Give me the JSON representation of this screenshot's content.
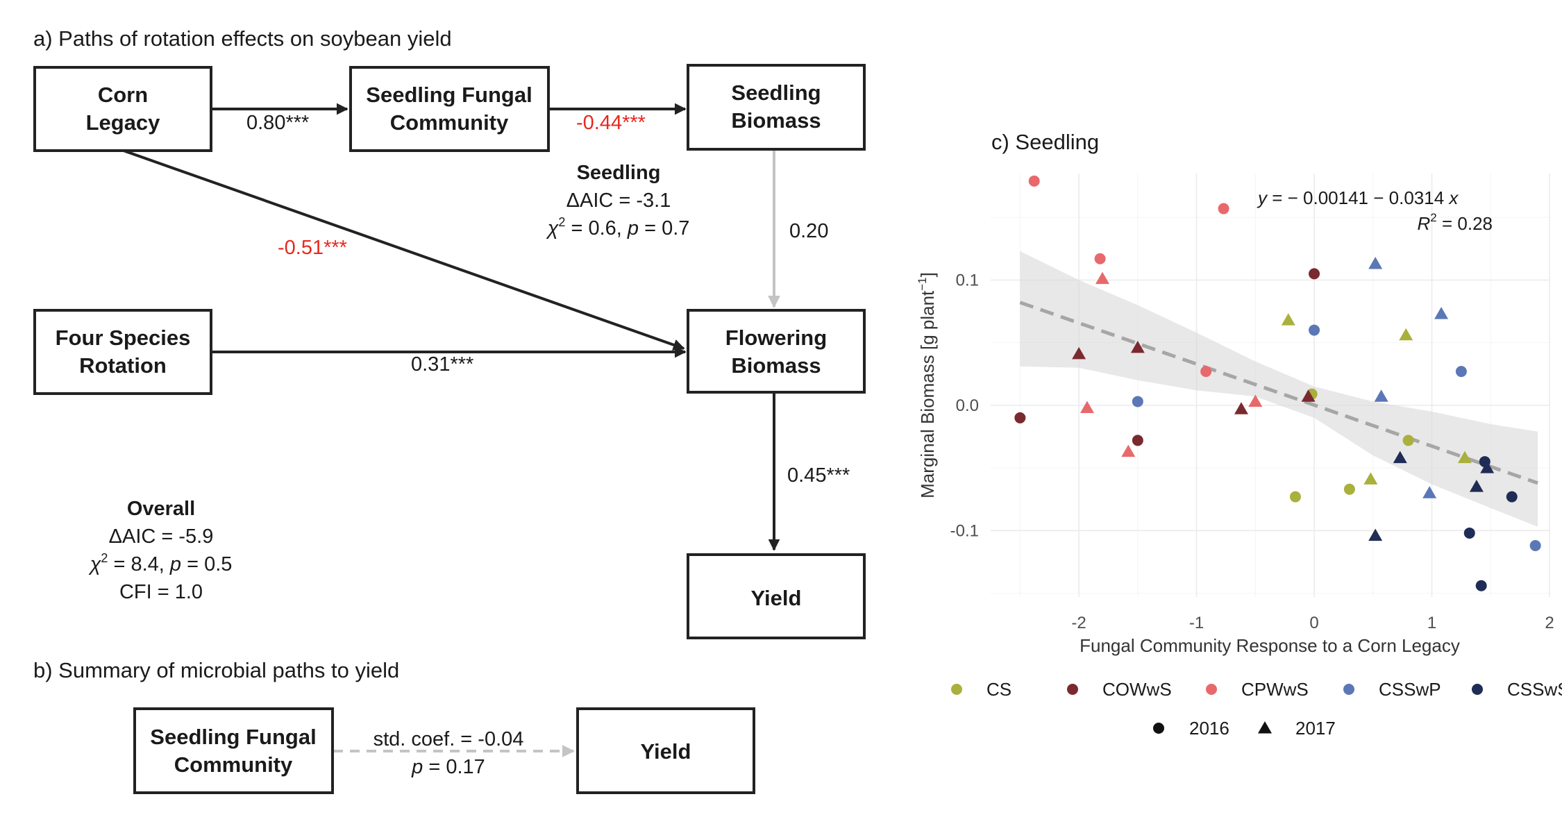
{
  "panel_a": {
    "title": "a) Paths of rotation effects on soybean yield",
    "boxes": {
      "corn_legacy": [
        "Corn",
        "Legacy"
      ],
      "seedling_fungal": [
        "Seedling Fungal",
        "Community"
      ],
      "seedling_biomass": [
        "Seedling",
        "Biomass"
      ],
      "four_species": [
        "Four Species",
        "Rotation"
      ],
      "flowering_biomass": [
        "Flowering",
        "Biomass"
      ],
      "yield": "Yield"
    },
    "coefs": {
      "corn_to_fungal": "0.80***",
      "fungal_to_seedling": "-0.44***",
      "corn_to_flowering": "-0.51***",
      "seedling_to_flowering": "0.20",
      "four_to_flowering": "0.31***",
      "flowering_to_yield": "0.45***"
    },
    "seedling_stats": {
      "heading": "Seedling",
      "aic": "ΔAIC = -3.1",
      "chi_prefix": "χ",
      "chi_sup": "2",
      "chi_mid": " = 0.6, ",
      "p_var": "p",
      "chi_tail": " = 0.7"
    },
    "overall_stats": {
      "heading": "Overall",
      "aic": "ΔAIC = -5.9",
      "chi_prefix": "χ",
      "chi_sup": "2",
      "chi_mid": " = 8.4, ",
      "p_var": "p",
      "chi_tail": " = 0.5",
      "cfi": "CFI = 1.0"
    }
  },
  "panel_b": {
    "title": "b) Summary of microbial paths to yield",
    "box_left": [
      "Seedling Fungal",
      "Community"
    ],
    "box_right": "Yield",
    "coef_line1": "std. coef. = -0.04",
    "p_var": "p",
    "coef_line2_tail": " = 0.17"
  },
  "panel_c": {
    "title": "c) Seedling",
    "equation": {
      "prefix": "y",
      "mid": " =  − 0.00141 − 0.0314 ",
      "suffix": "x",
      "r2_prefix": "R",
      "r2_sup": "2",
      "r2_tail": "  =  0.28"
    }
  },
  "colors": {
    "CS": "#a9b03c",
    "COWwS": "#7a2a2f",
    "CPWwS": "#e8696b",
    "CSSwP": "#5b77b6",
    "CSSwSf": "#1f2c55",
    "negative_coef": "#e8281e",
    "nonsig_path": "#c4c4c4"
  },
  "chart_data": {
    "type": "scatter",
    "title": "c) Seedling",
    "xlabel": "Fungal Community Response to a Corn Legacy",
    "ylabel_main": "Marginal Biomass [g plant",
    "ylabel_sup": "−1",
    "ylabel_end": "]",
    "xlim": [
      -2.5,
      2.0
    ],
    "ylim": [
      -0.15,
      0.18
    ],
    "x_ticks": [
      "-2",
      "-1",
      "0",
      "1",
      "2"
    ],
    "y_ticks": [
      "-0.1",
      "0.0",
      "0.1"
    ],
    "x_tick_values": [
      -2,
      -1,
      0,
      1,
      2
    ],
    "y_tick_values": [
      -0.1,
      0.0,
      0.1
    ],
    "grid": true,
    "fit": {
      "intercept": -0.00141,
      "slope": -0.0314,
      "r2": 0.28,
      "x_range": [
        -2.5,
        1.9
      ],
      "ci": [
        [
          -2.5,
          0.123,
          0.031
        ],
        [
          -2.0,
          0.1,
          0.03
        ],
        [
          -1.5,
          0.08,
          0.02
        ],
        [
          -1.0,
          0.058,
          0.012
        ],
        [
          -0.5,
          0.035,
          0.007
        ],
        [
          0.0,
          0.015,
          -0.01
        ],
        [
          0.5,
          0.003,
          -0.04
        ],
        [
          1.0,
          -0.005,
          -0.063
        ],
        [
          1.5,
          -0.015,
          -0.082
        ],
        [
          1.9,
          -0.021,
          -0.097
        ]
      ]
    },
    "legend_treatment": [
      "CS",
      "COWwS",
      "CPWwS",
      "CSSwP",
      "CSSwSf"
    ],
    "legend_year": [
      "2016",
      "2017"
    ],
    "series": [
      {
        "name": "CS",
        "points": [
          {
            "x": -0.16,
            "y": -0.073,
            "year": "2016"
          },
          {
            "x": 0.3,
            "y": -0.067,
            "year": "2016"
          },
          {
            "x": 0.8,
            "y": -0.028,
            "year": "2016"
          },
          {
            "x": -0.02,
            "y": 0.009,
            "year": "2016"
          },
          {
            "x": -0.22,
            "y": 0.068,
            "year": "2017"
          },
          {
            "x": 0.78,
            "y": 0.056,
            "year": "2017"
          },
          {
            "x": 1.28,
            "y": -0.042,
            "year": "2017"
          },
          {
            "x": 0.48,
            "y": -0.059,
            "year": "2017"
          }
        ]
      },
      {
        "name": "COWwS",
        "points": [
          {
            "x": -2.5,
            "y": -0.01,
            "year": "2016"
          },
          {
            "x": -1.5,
            "y": -0.028,
            "year": "2016"
          },
          {
            "x": 0.0,
            "y": 0.105,
            "year": "2016"
          },
          {
            "x": -2.0,
            "y": 0.041,
            "year": "2017"
          },
          {
            "x": -1.5,
            "y": 0.046,
            "year": "2017"
          },
          {
            "x": -0.62,
            "y": -0.003,
            "year": "2017"
          },
          {
            "x": -0.05,
            "y": 0.007,
            "year": "2017"
          }
        ]
      },
      {
        "name": "CPWwS",
        "points": [
          {
            "x": -2.38,
            "y": 0.179,
            "year": "2016"
          },
          {
            "x": -1.82,
            "y": 0.117,
            "year": "2016"
          },
          {
            "x": -0.77,
            "y": 0.157,
            "year": "2016"
          },
          {
            "x": -0.92,
            "y": 0.027,
            "year": "2016"
          },
          {
            "x": -1.8,
            "y": 0.101,
            "year": "2017"
          },
          {
            "x": -1.93,
            "y": -0.002,
            "year": "2017"
          },
          {
            "x": -1.58,
            "y": -0.037,
            "year": "2017"
          },
          {
            "x": -0.5,
            "y": 0.003,
            "year": "2017"
          }
        ]
      },
      {
        "name": "CSSwP",
        "points": [
          {
            "x": -1.5,
            "y": 0.003,
            "year": "2016"
          },
          {
            "x": 0.0,
            "y": 0.06,
            "year": "2016"
          },
          {
            "x": 1.25,
            "y": 0.027,
            "year": "2016"
          },
          {
            "x": 1.88,
            "y": -0.112,
            "year": "2016"
          },
          {
            "x": 0.52,
            "y": 0.113,
            "year": "2017"
          },
          {
            "x": 1.08,
            "y": 0.073,
            "year": "2017"
          },
          {
            "x": 0.57,
            "y": 0.007,
            "year": "2017"
          },
          {
            "x": 0.98,
            "y": -0.07,
            "year": "2017"
          }
        ]
      },
      {
        "name": "CSSwSf",
        "points": [
          {
            "x": 1.32,
            "y": -0.102,
            "year": "2016"
          },
          {
            "x": 1.42,
            "y": -0.144,
            "year": "2016"
          },
          {
            "x": 1.45,
            "y": -0.045,
            "year": "2016"
          },
          {
            "x": 1.68,
            "y": -0.073,
            "year": "2016"
          },
          {
            "x": 0.73,
            "y": -0.042,
            "year": "2017"
          },
          {
            "x": 1.38,
            "y": -0.065,
            "year": "2017"
          },
          {
            "x": 1.47,
            "y": -0.05,
            "year": "2017"
          },
          {
            "x": 0.52,
            "y": -0.104,
            "year": "2017"
          }
        ]
      }
    ]
  }
}
